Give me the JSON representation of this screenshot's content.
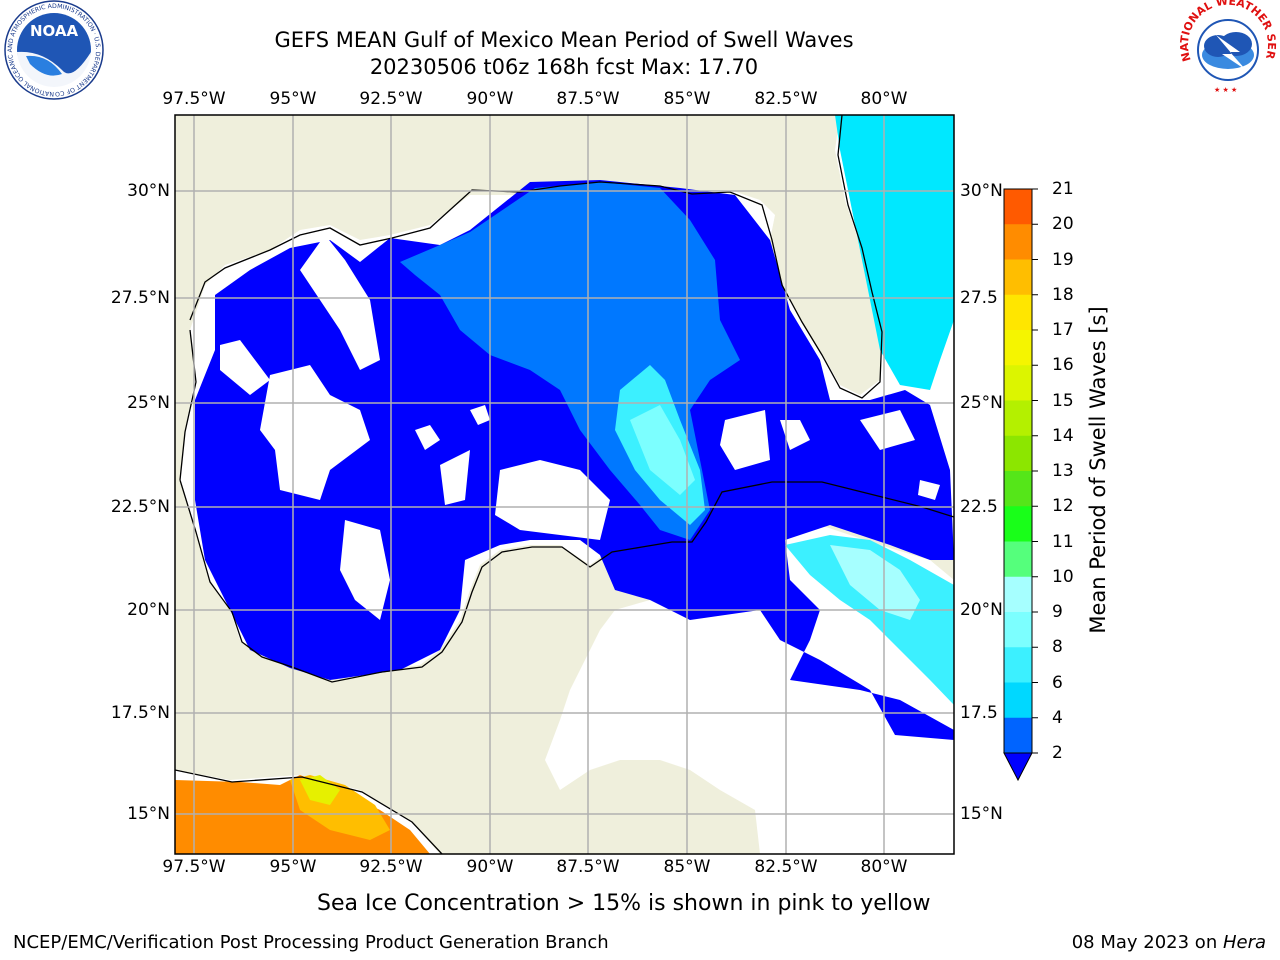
{
  "header": {
    "title_line1": "GEFS MEAN Gulf of Mexico Mean Period of Swell Waves",
    "title_line2": "20230506 t06z 168h fcst   Max: 17.70"
  },
  "map": {
    "lon_ticks": [
      "97.5°W",
      "95°W",
      "92.5°W",
      "90°W",
      "87.5°W",
      "85°W",
      "82.5°W",
      "80°W"
    ],
    "lat_ticks_left": [
      "30°N",
      "27.5°N",
      "25°N",
      "22.5°N",
      "20°N",
      "17.5°N",
      "15°N"
    ],
    "lat_ticks_right": [
      "30°N",
      "27.5",
      "25°N",
      "22.5",
      "20°N",
      "17.5",
      "15°N"
    ],
    "lon_range": [
      -98.0,
      -78.3
    ],
    "lat_range": [
      14.0,
      31.6
    ],
    "land_color": "#efefdc",
    "grid_color": "#b0b0b0"
  },
  "colorbar": {
    "label": "Mean Period of Swell Waves [s]",
    "ticks": [
      "2",
      "4",
      "6",
      "8",
      "9",
      "10",
      "11",
      "12",
      "13",
      "14",
      "15",
      "16",
      "17",
      "18",
      "19",
      "20",
      "21"
    ],
    "colors": [
      "#0064ff",
      "#00d8ff",
      "#3cf0ff",
      "#7cffff",
      "#a6ffff",
      "#55ff7c",
      "#19ff19",
      "#55e619",
      "#8ce600",
      "#b4f000",
      "#dcf500",
      "#f5f500",
      "#ffe600",
      "#ffbe00",
      "#ff8c00",
      "#ff5a00",
      "#ff2800",
      "#ff0000"
    ],
    "extend_color": "#0000ff"
  },
  "caption": "Sea Ice Concentration > 15% is shown in pink to yellow",
  "footer": {
    "left": "NCEP/EMC/Verification Post Processing Product Generation Branch",
    "date": "08 May 2023 on ",
    "host": "Hera"
  },
  "logos": {
    "noaa_text": "NOAA",
    "noaa_ring": "NATIONAL OCEANIC AND ATMOSPHERIC ADMINISTRATION · U.S. DEPARTMENT OF COMMERCE",
    "nws_ring": "NATIONAL WEATHER SERVICE"
  }
}
